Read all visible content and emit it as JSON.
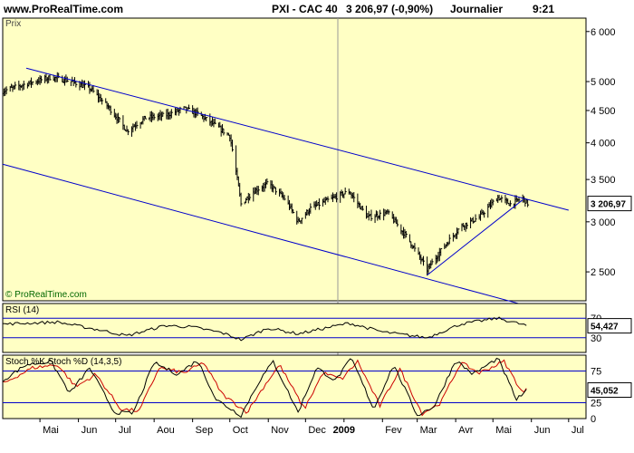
{
  "header": {
    "site": "www.ProRealTime.com",
    "instrument": "PXI - CAC 40",
    "quote": "3 206,97 (-0,90%)",
    "period": "Journalier",
    "time": "9:21"
  },
  "colors": {
    "panel_bg": "#ffffc4",
    "channel": "#0000cc",
    "price": "#000000",
    "stoch_k": "#000000",
    "stoch_d": "#cc0000",
    "level_line": "#0000cc"
  },
  "chart_data": [
    {
      "type": "candlestick",
      "panel_label": "Prix",
      "watermark": "© ProRealTime.com",
      "y_scale": "log",
      "ylim": [
        2250,
        6300
      ],
      "y_ticks": [
        {
          "value": 6000,
          "label": "6 000"
        },
        {
          "value": 5000,
          "label": "5 000"
        },
        {
          "value": 4500,
          "label": "4 500"
        },
        {
          "value": 4000,
          "label": "4 000"
        },
        {
          "value": 3500,
          "label": "3 500"
        },
        {
          "value": 3000,
          "label": "3 000"
        },
        {
          "value": 2500,
          "label": "2 500"
        }
      ],
      "last_value_label": "3 206,97",
      "last_value": 3206.97,
      "x_ticks": [
        "Mai",
        "Jun",
        "Jul",
        "Aou",
        "Sep",
        "Oct",
        "Nov",
        "Dec",
        "2009",
        "Fev",
        "Mar",
        "Avr",
        "Mai",
        "Jun",
        "Jul"
      ],
      "x_tick_dates": [
        "2008-05-01",
        "2008-06-01",
        "2008-07-01",
        "2008-08-01",
        "2008-09-01",
        "2008-10-01",
        "2008-11-01",
        "2008-12-01",
        "2009-01-01",
        "2009-02-01",
        "2009-03-01",
        "2009-04-01",
        "2009-05-01",
        "2009-06-01",
        "2009-07-01"
      ],
      "x_range": [
        "2008-04-01",
        "2009-07-15"
      ],
      "price_path": [
        {
          "date": "2008-04-01",
          "value": 4830
        },
        {
          "date": "2008-04-20",
          "value": 4960
        },
        {
          "date": "2008-05-10",
          "value": 5080
        },
        {
          "date": "2008-05-25",
          "value": 5010
        },
        {
          "date": "2008-06-10",
          "value": 4880
        },
        {
          "date": "2008-06-25",
          "value": 4560
        },
        {
          "date": "2008-07-10",
          "value": 4180
        },
        {
          "date": "2008-07-25",
          "value": 4380
        },
        {
          "date": "2008-08-10",
          "value": 4420
        },
        {
          "date": "2008-08-25",
          "value": 4530
        },
        {
          "date": "2008-09-05",
          "value": 4450
        },
        {
          "date": "2008-09-20",
          "value": 4250
        },
        {
          "date": "2008-10-01",
          "value": 4100
        },
        {
          "date": "2008-10-10",
          "value": 3200
        },
        {
          "date": "2008-10-20",
          "value": 3350
        },
        {
          "date": "2008-11-01",
          "value": 3450
        },
        {
          "date": "2008-11-15",
          "value": 3250
        },
        {
          "date": "2008-11-25",
          "value": 3000
        },
        {
          "date": "2008-12-05",
          "value": 3150
        },
        {
          "date": "2008-12-20",
          "value": 3250
        },
        {
          "date": "2009-01-05",
          "value": 3350
        },
        {
          "date": "2009-01-20",
          "value": 3050
        },
        {
          "date": "2009-02-05",
          "value": 3100
        },
        {
          "date": "2009-02-20",
          "value": 2850
        },
        {
          "date": "2009-03-09",
          "value": 2520
        },
        {
          "date": "2009-03-20",
          "value": 2700
        },
        {
          "date": "2009-04-05",
          "value": 2950
        },
        {
          "date": "2009-04-20",
          "value": 3050
        },
        {
          "date": "2009-05-05",
          "value": 3280
        },
        {
          "date": "2009-05-15",
          "value": 3200
        },
        {
          "date": "2009-05-25",
          "value": 3270
        },
        {
          "date": "2009-05-29",
          "value": 3207
        }
      ],
      "trendlines": [
        {
          "from": {
            "date": "2008-04-20",
            "value": 5250
          },
          "to": {
            "date": "2009-07-01",
            "value": 3130
          }
        },
        {
          "from": {
            "date": "2008-04-01",
            "value": 3700
          },
          "to": {
            "date": "2009-06-01",
            "value": 2200
          }
        },
        {
          "from": {
            "date": "2009-03-09",
            "value": 2470
          },
          "to": {
            "date": "2009-05-25",
            "value": 3250
          }
        }
      ]
    },
    {
      "type": "line",
      "panel_label": "RSI (14)",
      "ylim": [
        0,
        100
      ],
      "levels": [
        70,
        30
      ],
      "level_labels": [
        "70",
        "30"
      ],
      "last_value_label": "54,427",
      "last_value": 54.427,
      "series": [
        {
          "values": [
            {
              "date": "2008-04-01",
              "value": 58
            },
            {
              "date": "2008-05-15",
              "value": 62
            },
            {
              "date": "2008-06-20",
              "value": 45
            },
            {
              "date": "2008-07-10",
              "value": 34
            },
            {
              "date": "2008-08-10",
              "value": 55
            },
            {
              "date": "2008-09-01",
              "value": 52
            },
            {
              "date": "2008-09-25",
              "value": 40
            },
            {
              "date": "2008-10-10",
              "value": 26
            },
            {
              "date": "2008-11-01",
              "value": 50
            },
            {
              "date": "2008-11-25",
              "value": 38
            },
            {
              "date": "2009-01-05",
              "value": 60
            },
            {
              "date": "2009-02-01",
              "value": 42
            },
            {
              "date": "2009-03-09",
              "value": 30
            },
            {
              "date": "2009-04-05",
              "value": 58
            },
            {
              "date": "2009-05-05",
              "value": 70
            },
            {
              "date": "2009-05-29",
              "value": 54.4
            }
          ]
        }
      ]
    },
    {
      "type": "line",
      "panel_label": "Stoch %K Stoch %D (14,3,5)",
      "ylim": [
        0,
        100
      ],
      "levels": [
        75,
        25
      ],
      "level_labels": [
        "75",
        "25",
        "0"
      ],
      "last_value_label": "45,052",
      "last_value": 45.052,
      "series": [
        {
          "name": "Stoch %K",
          "values": [
            {
              "date": "2008-04-01",
              "value": 60
            },
            {
              "date": "2008-04-20",
              "value": 85
            },
            {
              "date": "2008-05-10",
              "value": 90
            },
            {
              "date": "2008-05-25",
              "value": 40
            },
            {
              "date": "2008-06-10",
              "value": 80
            },
            {
              "date": "2008-06-30",
              "value": 10
            },
            {
              "date": "2008-07-15",
              "value": 8
            },
            {
              "date": "2008-08-01",
              "value": 88
            },
            {
              "date": "2008-08-20",
              "value": 70
            },
            {
              "date": "2008-09-05",
              "value": 92
            },
            {
              "date": "2008-09-20",
              "value": 30
            },
            {
              "date": "2008-10-10",
              "value": 5
            },
            {
              "date": "2008-10-25",
              "value": 60
            },
            {
              "date": "2008-11-05",
              "value": 90
            },
            {
              "date": "2008-11-25",
              "value": 10
            },
            {
              "date": "2008-12-10",
              "value": 80
            },
            {
              "date": "2008-12-25",
              "value": 60
            },
            {
              "date": "2009-01-07",
              "value": 95
            },
            {
              "date": "2009-01-25",
              "value": 15
            },
            {
              "date": "2009-02-10",
              "value": 85
            },
            {
              "date": "2009-03-01",
              "value": 5
            },
            {
              "date": "2009-03-15",
              "value": 20
            },
            {
              "date": "2009-04-01",
              "value": 92
            },
            {
              "date": "2009-04-15",
              "value": 70
            },
            {
              "date": "2009-05-05",
              "value": 95
            },
            {
              "date": "2009-05-20",
              "value": 30
            },
            {
              "date": "2009-05-29",
              "value": 45
            }
          ]
        },
        {
          "name": "Stoch %D",
          "values": [
            {
              "date": "2008-04-01",
              "value": 55
            },
            {
              "date": "2008-04-25",
              "value": 80
            },
            {
              "date": "2008-05-15",
              "value": 85
            },
            {
              "date": "2008-05-30",
              "value": 50
            },
            {
              "date": "2008-06-15",
              "value": 70
            },
            {
              "date": "2008-07-05",
              "value": 15
            },
            {
              "date": "2008-07-20",
              "value": 12
            },
            {
              "date": "2008-08-05",
              "value": 80
            },
            {
              "date": "2008-08-25",
              "value": 72
            },
            {
              "date": "2008-09-10",
              "value": 88
            },
            {
              "date": "2008-09-25",
              "value": 38
            },
            {
              "date": "2008-10-15",
              "value": 10
            },
            {
              "date": "2008-10-30",
              "value": 55
            },
            {
              "date": "2008-11-10",
              "value": 85
            },
            {
              "date": "2008-11-30",
              "value": 15
            },
            {
              "date": "2008-12-15",
              "value": 72
            },
            {
              "date": "2008-12-30",
              "value": 62
            },
            {
              "date": "2009-01-12",
              "value": 90
            },
            {
              "date": "2009-01-30",
              "value": 20
            },
            {
              "date": "2009-02-15",
              "value": 78
            },
            {
              "date": "2009-03-05",
              "value": 8
            },
            {
              "date": "2009-03-20",
              "value": 25
            },
            {
              "date": "2009-04-05",
              "value": 88
            },
            {
              "date": "2009-04-20",
              "value": 72
            },
            {
              "date": "2009-05-10",
              "value": 90
            },
            {
              "date": "2009-05-25",
              "value": 40
            },
            {
              "date": "2009-05-29",
              "value": 47
            }
          ]
        }
      ]
    }
  ]
}
